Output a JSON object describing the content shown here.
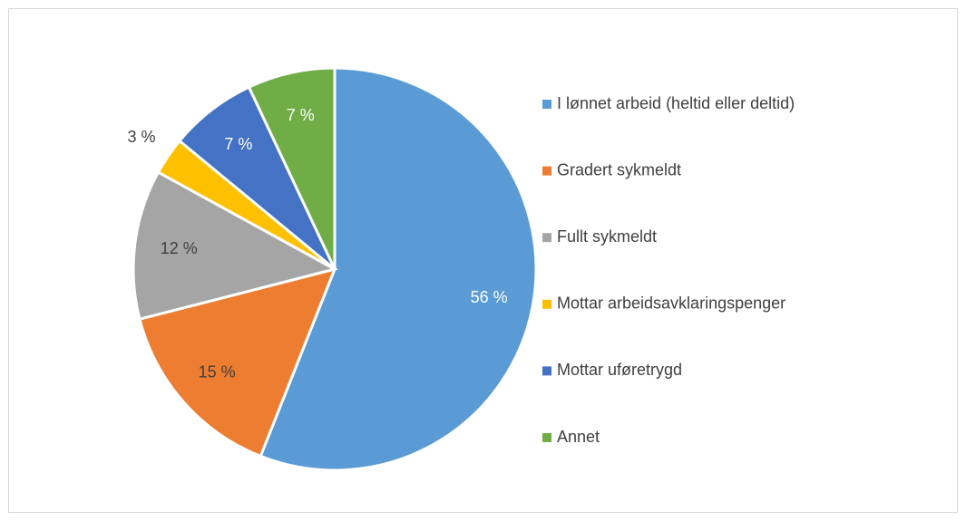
{
  "chart_data": {
    "type": "pie",
    "categories": [
      "I lønnet arbeid (heltid eller deltid)",
      "Gradert sykmeldt",
      "Fullt sykmeldt",
      "Mottar arbeidsavklaringspenger",
      "Mottar uføretrygd",
      "Annet"
    ],
    "values": [
      56,
      15,
      12,
      3,
      7,
      7
    ],
    "value_labels": [
      "56 %",
      "15 %",
      "12 %",
      "3 %",
      "7 %",
      "7 %"
    ],
    "colors": [
      "#5b9bd5",
      "#ed7d31",
      "#a5a5a5",
      "#ffc000",
      "#4472c4",
      "#70ad47"
    ],
    "legend": "right"
  }
}
